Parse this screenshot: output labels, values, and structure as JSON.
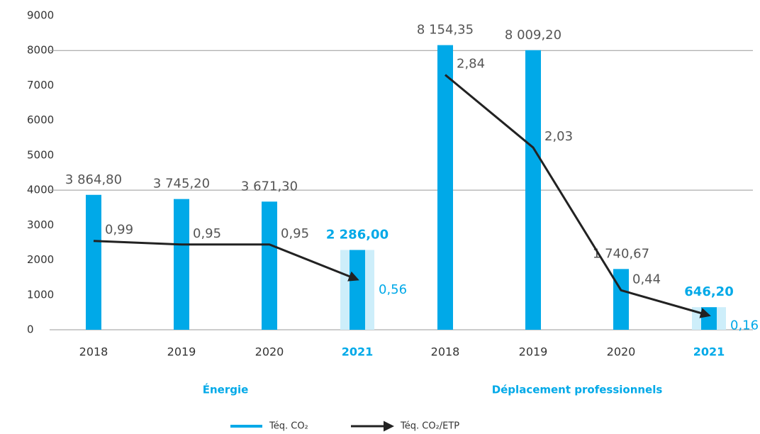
{
  "chart_data": {
    "type": "bar_line",
    "groups": [
      {
        "name": "Énergie",
        "categories": [
          "2018",
          "2019",
          "2020",
          "2021"
        ]
      },
      {
        "name": "Déplacement professionnels",
        "categories": [
          "2018",
          "2019",
          "2020",
          "2021"
        ]
      }
    ],
    "highlight_category": 3,
    "series": [
      {
        "name": "Téq. CO₂",
        "type": "bar",
        "color": "#00a9e8",
        "highlight_color": "#cdeefa",
        "values": [
          [
            3864.8,
            3745.2,
            3671.3,
            2286.0
          ],
          [
            8154.35,
            8009.2,
            1740.67,
            646.2
          ]
        ],
        "value_labels": [
          [
            "3 864,80",
            "3 745,20",
            "3 671,30",
            "2 286,00"
          ],
          [
            "8 154,35",
            "8 009,20",
            "1 740,67",
            "646,20"
          ]
        ]
      },
      {
        "name": "Téq. CO₂/ETP",
        "type": "line",
        "axis": "y2",
        "color": "#222222",
        "values": [
          [
            0.99,
            0.95,
            0.95,
            0.56
          ],
          [
            2.84,
            2.03,
            0.44,
            0.16
          ]
        ],
        "value_labels": [
          [
            "0,99",
            "0,95",
            "0,95",
            "0,56"
          ],
          [
            "2,84",
            "2,03",
            "0,44",
            "0,16"
          ]
        ]
      }
    ],
    "ylim": [
      0,
      9000
    ],
    "yticks": [
      0,
      1000,
      2000,
      3000,
      4000,
      5000,
      6000,
      7000,
      8000,
      9000
    ],
    "grid": [
      4000,
      8000
    ],
    "y2lim": [
      0,
      3.5
    ]
  }
}
